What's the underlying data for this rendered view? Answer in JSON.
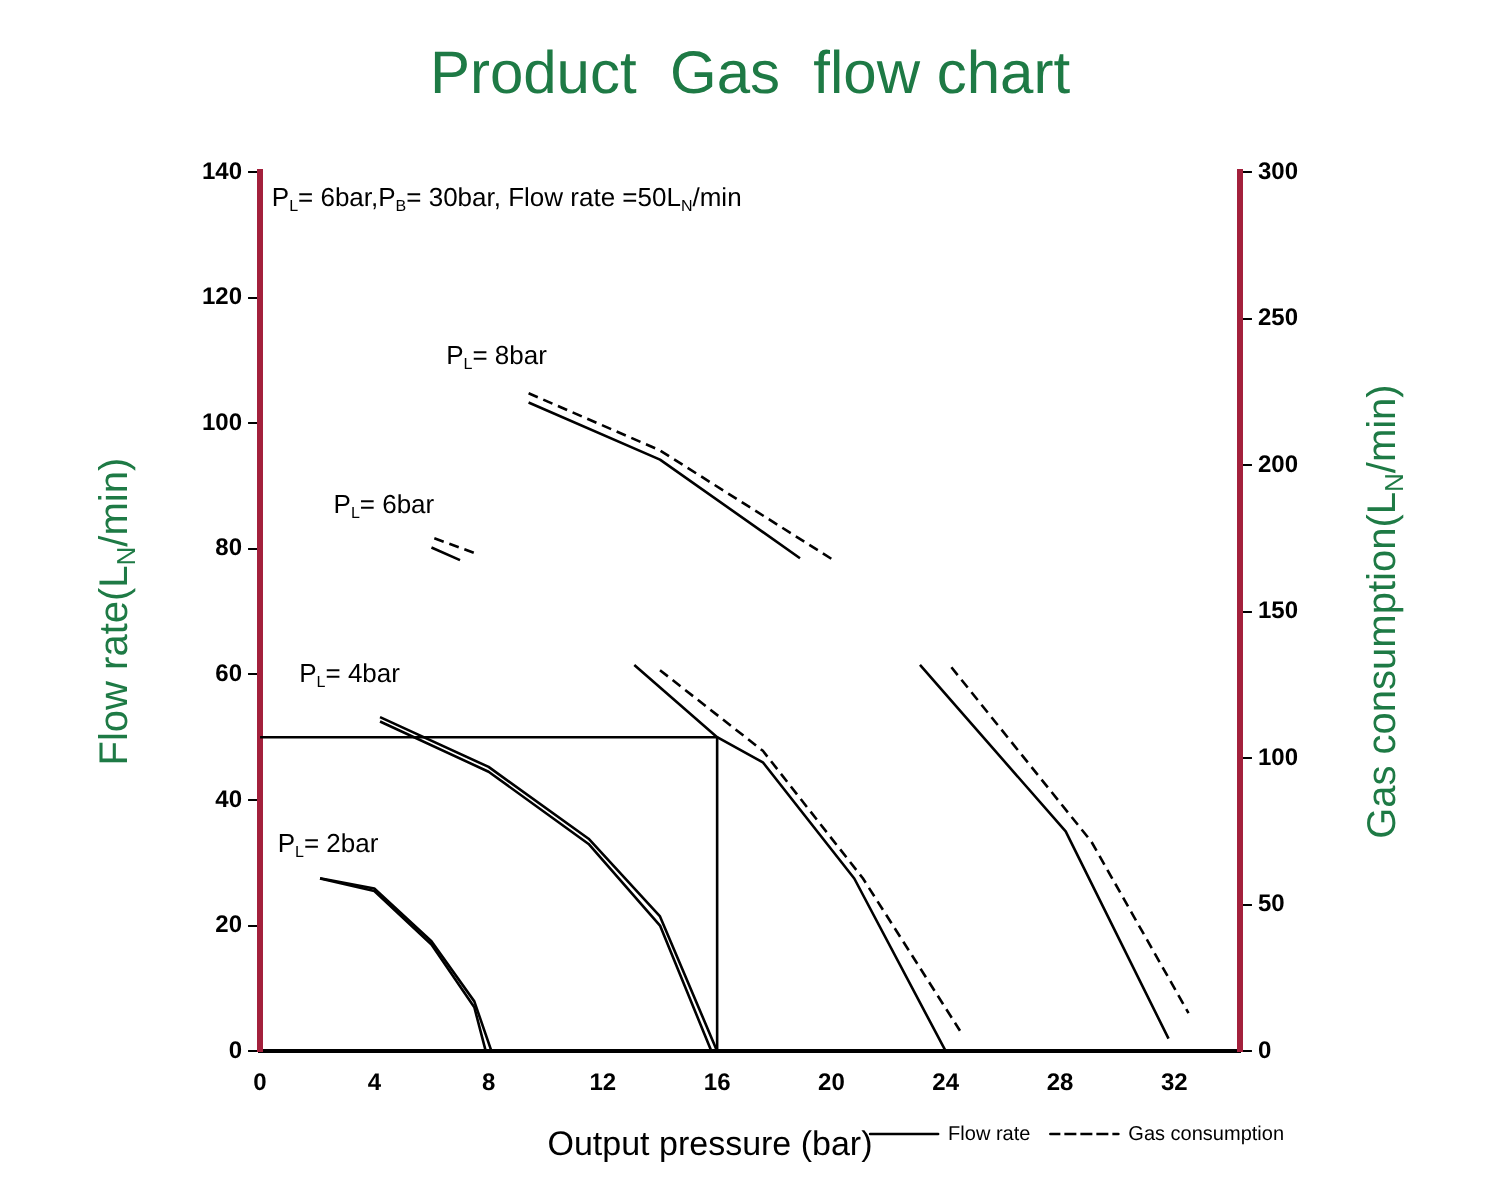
{
  "chart_data": {
    "type": "line",
    "title": "Product  Gas  flow chart",
    "xlabel": "Output pressure (bar)",
    "ylabel": "Flow rate(L$_{N}$/min)",
    "y2label": "Gas consumption(L$_{N}$/min)",
    "xlim": [
      0,
      34.3
    ],
    "xticks": [
      0,
      4,
      8,
      12,
      16,
      20,
      24,
      28,
      32
    ],
    "ylim": [
      0,
      140
    ],
    "yticks": [
      0,
      20,
      40,
      60,
      80,
      100,
      120,
      140
    ],
    "y2lim": [
      0,
      300
    ],
    "y2ticks": [
      0,
      50,
      100,
      150,
      200,
      250,
      300
    ],
    "grid": false,
    "legend": "bottom right",
    "marker": "none",
    "series": [
      {
        "name": "Flow rate",
        "color": "#000000",
        "line_style": "solid",
        "x": [
          2.1,
          4,
          6,
          7.5,
          7.9
        ],
        "values": [
          27.5,
          25.5,
          17,
          7,
          0
        ]
      },
      {
        "name": "Gas consumption",
        "color": "#000000",
        "line_style": "dashed",
        "axis": "y2",
        "x": [
          6.1,
          7.5,
          10,
          14,
          17.6,
          21.1,
          24.5
        ],
        "values": [
          175,
          170,
          null,
          130,
          102.5,
          59,
          7
        ]
      },
      {
        "color": "#000000",
        "line_style": "solid",
        "axis": "y2",
        "x": [
          2.1,
          4,
          6,
          7.5,
          8.1
        ],
        "values": [
          59,
          55.5,
          37.5,
          17,
          0
        ]
      },
      {
        "color": "#000000",
        "line_style": "solid",
        "x": [
          4.2,
          8,
          11.5,
          14,
          15.8
        ],
        "values": [
          52.5,
          44.5,
          33,
          20,
          0
        ]
      },
      {
        "color": "#000000",
        "line_style": "solid",
        "axis": "y2",
        "x": [
          4.2,
          8,
          11.5,
          14,
          16
        ],
        "values": [
          114,
          97,
          72.5,
          46,
          0
        ]
      },
      {
        "color": "#000000",
        "line_style": "solid",
        "x": [
          6.0,
          7.0,
          10,
          13.1,
          16,
          17.6,
          20.8,
          24
        ],
        "values": [
          80.2,
          78.2,
          null,
          61.5,
          50,
          46,
          27.5,
          0
        ]
      },
      {
        "color": "#000000",
        "line_style": "solid",
        "x": [
          9.4,
          14,
          18.9,
          21,
          23.1,
          28.2,
          31.8
        ],
        "values": [
          103.3,
          94.2,
          78.5,
          null,
          61.5,
          35,
          2
        ]
      },
      {
        "color": "#000000",
        "line_style": "dashed",
        "axis": "y2",
        "x": [
          9.4,
          14,
          20,
          22,
          24.2,
          29.1,
          32.5
        ],
        "values": [
          224.5,
          205,
          168,
          null,
          131,
          71.5,
          13
        ]
      },
      {
        "color": "#000000",
        "line_style": "solid",
        "x": [
          0,
          16,
          16
        ],
        "values": [
          50,
          50,
          0
        ]
      }
    ],
    "annotations": [
      "P$_{L}$= 6bar,P$_{B}$= 30bar, Flow rate =50L$_{N}$/min",
      "P$_{L}$= 2bar",
      "P$_{L}$= 4bar",
      "P$_{L}$= 6bar",
      "P$_{L}$= 8bar"
    ]
  }
}
